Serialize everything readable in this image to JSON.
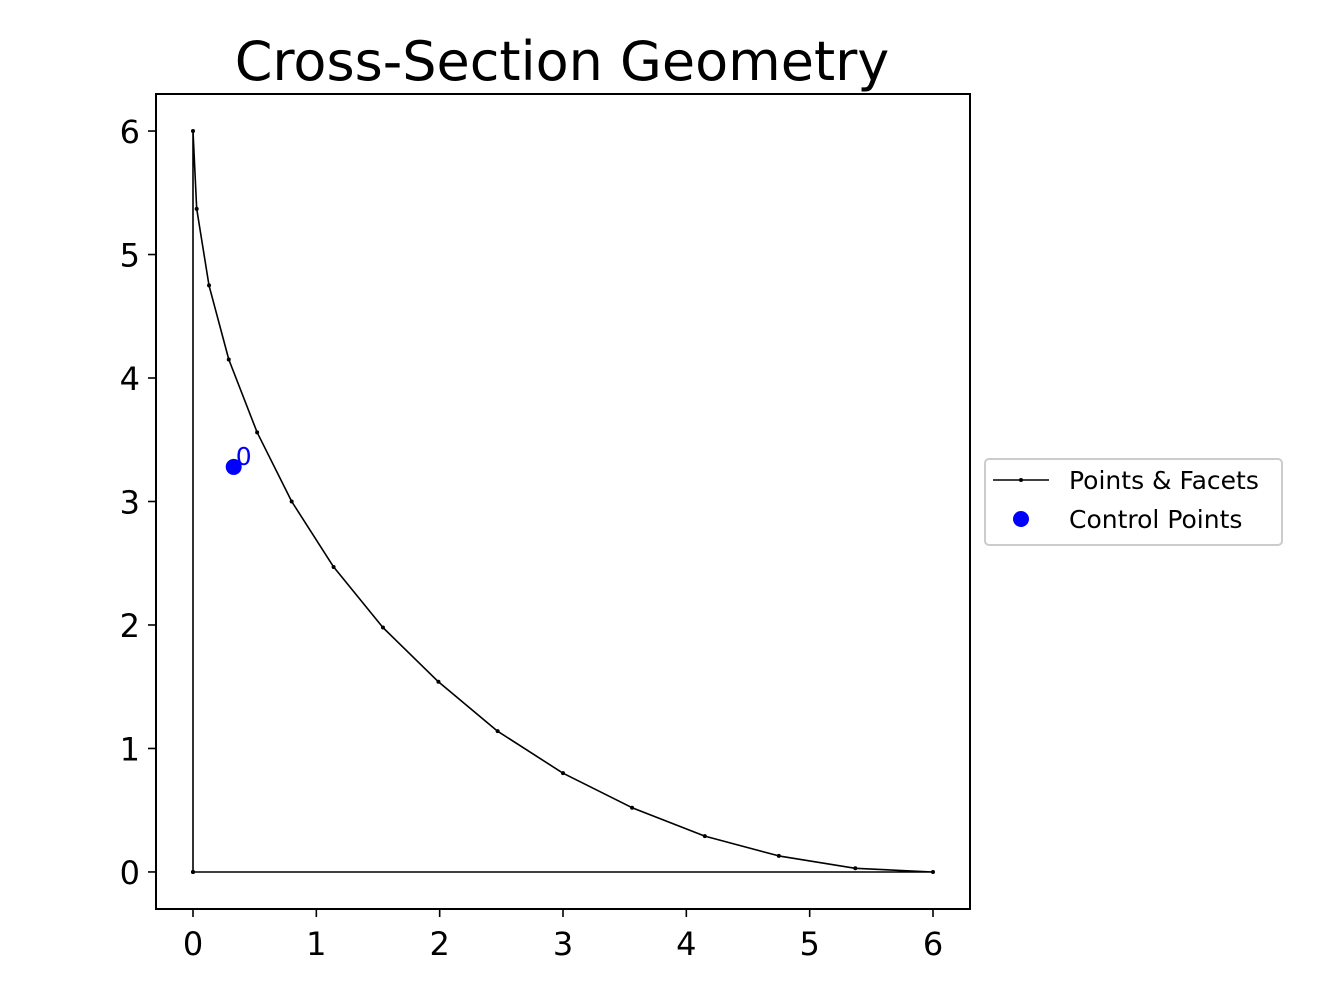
{
  "chart_data": {
    "type": "line",
    "title": "Cross-Section Geometry",
    "xlabel": "",
    "ylabel": "",
    "xlim": [
      -0.3,
      6.3
    ],
    "ylim": [
      -0.3,
      6.3
    ],
    "xticks": [
      0,
      1,
      2,
      3,
      4,
      5,
      6
    ],
    "yticks": [
      0,
      1,
      2,
      3,
      4,
      5,
      6
    ],
    "grid": false,
    "legend_position": "center-right outside",
    "series": [
      {
        "name": "Points & Facets",
        "color": "#000000",
        "points": [
          [
            0,
            0
          ],
          [
            6.0,
            0.0
          ],
          [
            5.37,
            0.03
          ],
          [
            4.75,
            0.13
          ],
          [
            4.15,
            0.29
          ],
          [
            3.56,
            0.52
          ],
          [
            3.0,
            0.8
          ],
          [
            2.47,
            1.14
          ],
          [
            1.99,
            1.54
          ],
          [
            1.54,
            1.98
          ],
          [
            1.14,
            2.47
          ],
          [
            0.8,
            3.0
          ],
          [
            0.52,
            3.56
          ],
          [
            0.29,
            4.15
          ],
          [
            0.13,
            4.75
          ],
          [
            0.03,
            5.37
          ],
          [
            0.0,
            6.0
          ],
          [
            0,
            0
          ]
        ]
      },
      {
        "name": "Control Points",
        "color": "#0000ff",
        "points": [
          [
            0.33,
            3.28
          ]
        ],
        "labels": [
          "0"
        ]
      }
    ]
  }
}
